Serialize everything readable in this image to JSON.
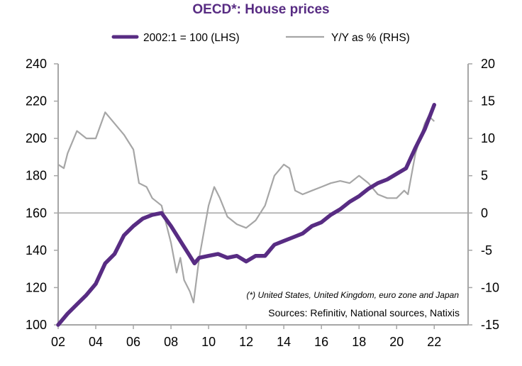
{
  "chart_data": {
    "type": "line",
    "title": "OECD*: House prices",
    "legend": [
      {
        "name": "2002:1 = 100 (LHS)",
        "color": "#582C83"
      },
      {
        "name": "Y/Y as % (RHS)",
        "color": "#A6A6A6"
      }
    ],
    "legend_position": "top-center",
    "x_tick_labels": [
      "02",
      "04",
      "06",
      "08",
      "10",
      "12",
      "14",
      "16",
      "18",
      "20",
      "22"
    ],
    "x_ticks": [
      2002,
      2004,
      2006,
      2008,
      2010,
      2012,
      2014,
      2016,
      2018,
      2020,
      2022
    ],
    "xlim": [
      2002,
      2023.8
    ],
    "y_left": {
      "label": "",
      "ylim": [
        100,
        240
      ],
      "ticks": [
        100,
        120,
        140,
        160,
        180,
        200,
        220,
        240
      ]
    },
    "y_right": {
      "label": "",
      "ylim": [
        -15,
        20
      ],
      "ticks": [
        -15,
        -10,
        -5,
        0,
        5,
        10,
        15,
        20
      ]
    },
    "zero_line_right": 0,
    "annotation": "(*) United States, United Kingdom, euro zone and Japan",
    "source": "Sources: Refinitiv, National sources, Natixis",
    "series": [
      {
        "name": "2002:1 = 100 (LHS)",
        "axis": "left",
        "x": [
          2002.0,
          2002.5,
          2003.0,
          2003.5,
          2004.0,
          2004.5,
          2005.0,
          2005.5,
          2006.0,
          2006.5,
          2007.0,
          2007.5,
          2008.0,
          2008.5,
          2009.0,
          2009.25,
          2009.5,
          2010.0,
          2010.5,
          2011.0,
          2011.5,
          2012.0,
          2012.5,
          2013.0,
          2013.5,
          2014.0,
          2014.5,
          2015.0,
          2015.5,
          2016.0,
          2016.5,
          2017.0,
          2017.5,
          2018.0,
          2018.5,
          2019.0,
          2019.5,
          2020.0,
          2020.5,
          2021.0,
          2021.5,
          2022.0
        ],
        "values": [
          100,
          106,
          111,
          116,
          122,
          133,
          138,
          148,
          153,
          157,
          159,
          160,
          153,
          145,
          137,
          133,
          136,
          137,
          138,
          136,
          137,
          134,
          137,
          137,
          143,
          145,
          147,
          149,
          153,
          155,
          159,
          162,
          166,
          169,
          173,
          176,
          178,
          181,
          184,
          195,
          205,
          218
        ]
      },
      {
        "name": "Y/Y as % (RHS)",
        "axis": "right",
        "x": [
          2002.0,
          2002.3,
          2002.5,
          2003.0,
          2003.5,
          2004.0,
          2004.5,
          2005.0,
          2005.5,
          2006.0,
          2006.3,
          2006.7,
          2007.0,
          2007.5,
          2008.0,
          2008.3,
          2008.5,
          2008.7,
          2009.0,
          2009.2,
          2009.5,
          2010.0,
          2010.3,
          2010.6,
          2011.0,
          2011.5,
          2012.0,
          2012.5,
          2013.0,
          2013.5,
          2014.0,
          2014.3,
          2014.6,
          2015.0,
          2015.5,
          2016.0,
          2016.5,
          2017.0,
          2017.5,
          2018.0,
          2018.5,
          2019.0,
          2019.5,
          2020.0,
          2020.4,
          2020.6,
          2021.0,
          2021.5,
          2021.7,
          2022.0
        ],
        "values": [
          6.5,
          6,
          8,
          11,
          10,
          10,
          13.5,
          12,
          10.5,
          8.5,
          4,
          3.5,
          2,
          1,
          -4,
          -8,
          -6,
          -9,
          -10.5,
          -12,
          -6,
          1,
          3.5,
          2,
          -0.5,
          -1.5,
          -2,
          -1,
          1,
          5,
          6.5,
          6,
          3,
          2.5,
          3,
          3.5,
          4,
          4.3,
          4,
          5,
          4,
          2.5,
          2,
          2,
          3,
          2.5,
          8,
          12,
          13,
          12.3
        ]
      }
    ]
  }
}
